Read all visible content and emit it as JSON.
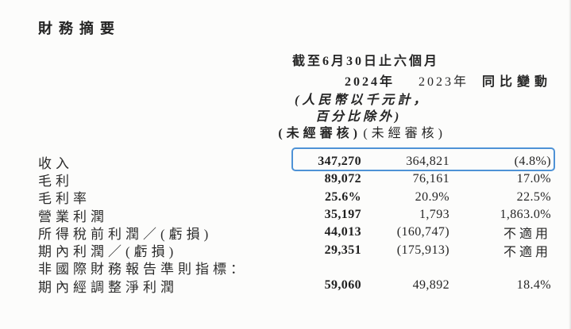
{
  "page": {
    "title": "財務摘要"
  },
  "table": {
    "period_header": "截至6月30日止六個月",
    "columns": [
      {
        "label": "2024年",
        "sub": "(未經審核)"
      },
      {
        "label": "2023年",
        "sub": "(未經審核)"
      },
      {
        "label": "同比變動"
      }
    ],
    "unit_note_line1": "(人民幣以千元計，",
    "unit_note_line2": "百分比除外)",
    "highlight_color": "#4e92d6",
    "rows": [
      {
        "label": "收入",
        "v2024": "347,270",
        "v2023": "364,821",
        "change": "(4.8%)",
        "highlighted": true
      },
      {
        "label": "毛利",
        "v2024": "89,072",
        "v2023": "76,161",
        "change": "17.0%",
        "highlighted": false
      },
      {
        "label": "毛利率",
        "v2024": "25.6%",
        "v2023": "20.9%",
        "change": "22.5%",
        "highlighted": false
      },
      {
        "label": "營業利潤",
        "v2024": "35,197",
        "v2023": "1,793",
        "change": "1,863.0%",
        "highlighted": false
      },
      {
        "label": "所得稅前利潤／(虧損)",
        "v2024": "44,013",
        "v2023": "(160,747)",
        "change": "不適用",
        "highlighted": false
      },
      {
        "label": "期內利潤／(虧損)",
        "v2024": "29,351",
        "v2023": "(175,913)",
        "change": "不適用",
        "highlighted": false
      },
      {
        "label": "非國際財務報告準則指標：",
        "v2024": "",
        "v2023": "",
        "change": "",
        "highlighted": false
      },
      {
        "label": "期內經調整淨利潤",
        "v2024": "59,060",
        "v2023": "49,892",
        "change": "18.4%",
        "highlighted": false
      }
    ]
  }
}
